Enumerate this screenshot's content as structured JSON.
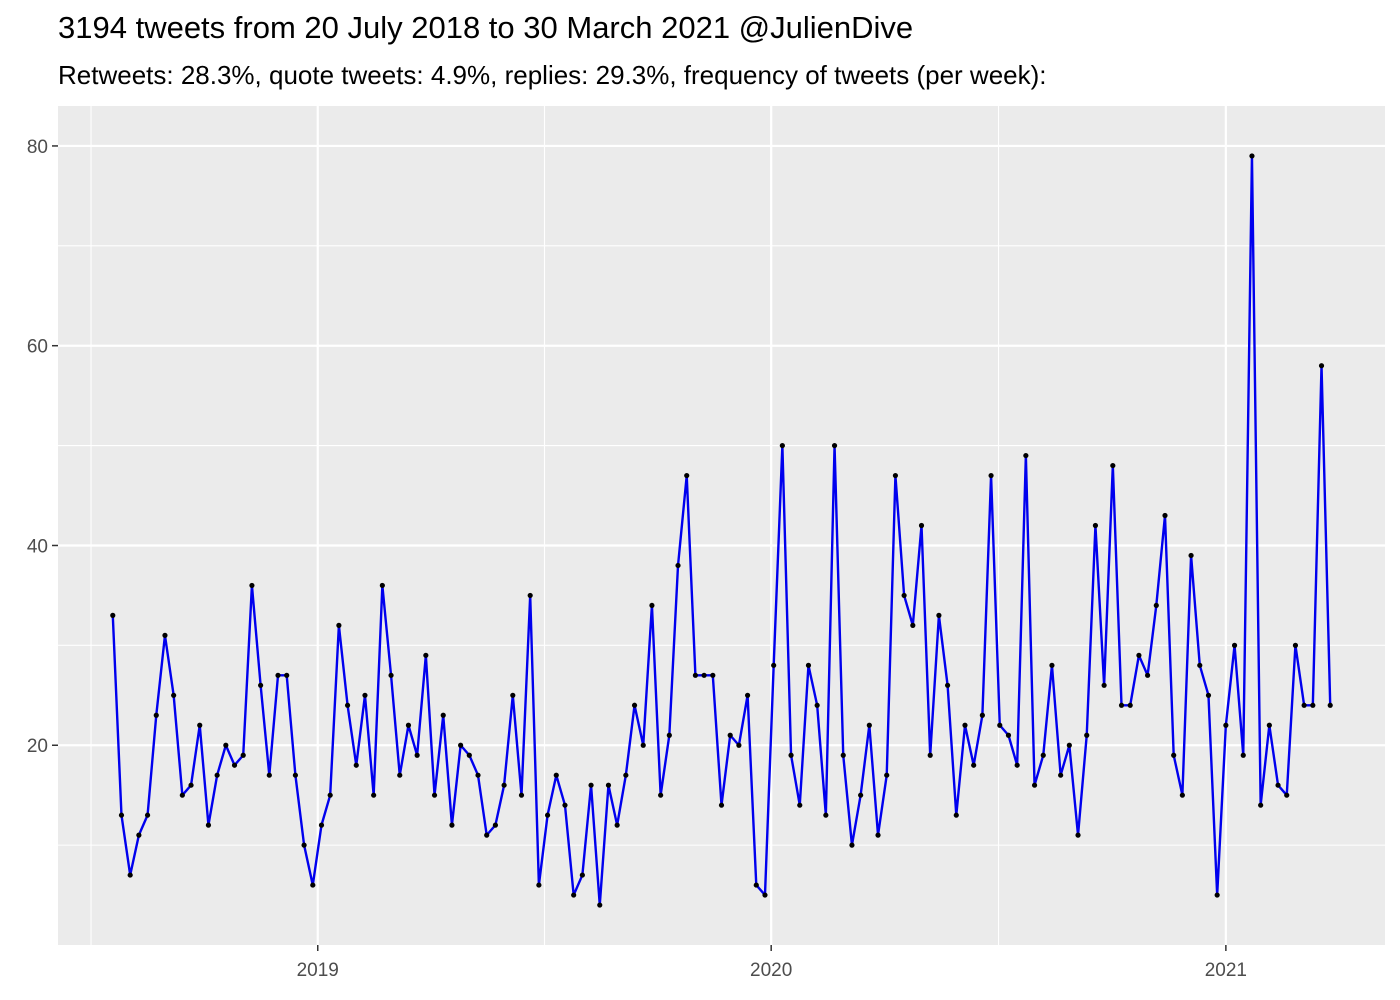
{
  "title": "3194 tweets from 20 July 2018 to 30 March 2021 @JulienDive",
  "subtitle": "Retweets: 28.3%, quote tweets: 4.9%, replies: 29.3%, frequency of tweets (per week):",
  "chart_data": {
    "type": "line",
    "title": "3194 tweets from 20 July 2018 to 30 March 2021 @JulienDive",
    "subtitle": "Retweets: 28.3%, quote tweets: 4.9%, replies: 29.3%, frequency of tweets (per week):",
    "xlabel": "",
    "ylabel": "",
    "x_start": "2018-07-20",
    "x_step_days": 7,
    "x_ticks": [
      {
        "label": "2019",
        "date": "2019-01-01"
      },
      {
        "label": "2020",
        "date": "2020-01-01"
      },
      {
        "label": "2021",
        "date": "2021-01-01"
      }
    ],
    "y_ticks": [
      20,
      40,
      60,
      80
    ],
    "ylim": [
      0,
      84
    ],
    "grid": true,
    "line_color": "#0000ee",
    "point_color": "#000000",
    "panel_color": "#ebebeb",
    "series": [
      {
        "values": [
          33,
          13,
          7,
          11,
          13,
          23,
          31,
          25,
          15,
          16,
          22,
          12,
          17,
          20,
          18,
          19,
          36,
          26,
          17,
          27,
          27,
          17,
          10,
          6,
          12,
          15,
          32,
          24,
          18,
          25,
          15,
          36,
          27,
          17,
          22,
          19,
          29,
          15,
          23,
          12,
          20,
          19,
          17,
          11,
          12,
          16,
          25,
          15,
          35,
          6,
          13,
          17,
          14,
          5,
          7,
          16,
          4,
          16,
          12,
          17,
          24,
          20,
          34,
          15,
          21,
          38,
          47,
          27,
          27,
          27,
          14,
          21,
          20,
          25,
          6,
          5,
          28,
          50,
          19,
          14,
          28,
          24,
          13,
          50,
          19,
          10,
          15,
          22,
          11,
          17,
          47,
          35,
          32,
          42,
          19,
          33,
          26,
          13,
          22,
          18,
          23,
          47,
          22,
          21,
          18,
          49,
          16,
          19,
          28,
          17,
          20,
          11,
          21,
          42,
          26,
          48,
          24,
          24,
          29,
          27,
          34,
          43,
          19,
          15,
          39,
          28,
          25,
          5,
          22,
          30,
          19,
          79,
          14,
          22,
          16,
          15,
          30,
          24,
          24,
          58,
          24
        ]
      }
    ]
  }
}
